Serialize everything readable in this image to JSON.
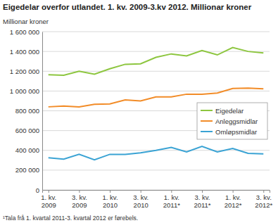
{
  "chart_data": {
    "type": "line",
    "title": "Eigedelar overfor utlandet. 1. kv. 2009-3.kv 2012. Millionar kroner",
    "y_label": "Millionar kroner",
    "annotations": [
      "¹Tala frå 1. kvartal 2011-3. kvartal 2012 er førebels."
    ],
    "categories": [
      "1. kv. 2009",
      null,
      "3. kv. 2009",
      null,
      "1. kv. 2010",
      null,
      "3. kv. 2010",
      null,
      "1. kv. 2011*",
      null,
      "3. kv. 2011*",
      null,
      "1. kv. 2012*",
      null,
      "3. kv. 2012*"
    ],
    "series": [
      {
        "name": "Eigedelar",
        "color": "#8dc63f",
        "values": [
          1165000,
          1160000,
          1200000,
          1170000,
          1225000,
          1270000,
          1275000,
          1340000,
          1375000,
          1355000,
          1410000,
          1365000,
          1440000,
          1400000,
          1385000
        ]
      },
      {
        "name": "Anleggsmidlar",
        "color": "#f28c28",
        "values": [
          840000,
          848000,
          840000,
          865000,
          870000,
          910000,
          900000,
          940000,
          940000,
          968000,
          968000,
          980000,
          1025000,
          1030000,
          1022000
        ]
      },
      {
        "name": "Omløpsmidlar",
        "color": "#3aa3d4",
        "values": [
          325000,
          312000,
          360000,
          305000,
          360000,
          360000,
          375000,
          400000,
          430000,
          385000,
          440000,
          385000,
          420000,
          370000,
          365000
        ]
      }
    ],
    "ylim": [
      0,
      1600000
    ],
    "yticks": [
      0,
      {
        "value": 200000,
        "label": "200 000"
      },
      {
        "value": 400000,
        "label": "400 000"
      },
      {
        "value": 600000,
        "label": "600 000"
      },
      {
        "value": 800000,
        "label": "800 000"
      },
      {
        "value": 1000000,
        "label": "1 000 000"
      },
      {
        "value": 1200000,
        "label": "1 200 000"
      },
      {
        "value": 1400000,
        "label": "1 400 000"
      },
      {
        "value": 1600000,
        "label": "1 600 000"
      }
    ],
    "grid": true,
    "legend": "right"
  }
}
